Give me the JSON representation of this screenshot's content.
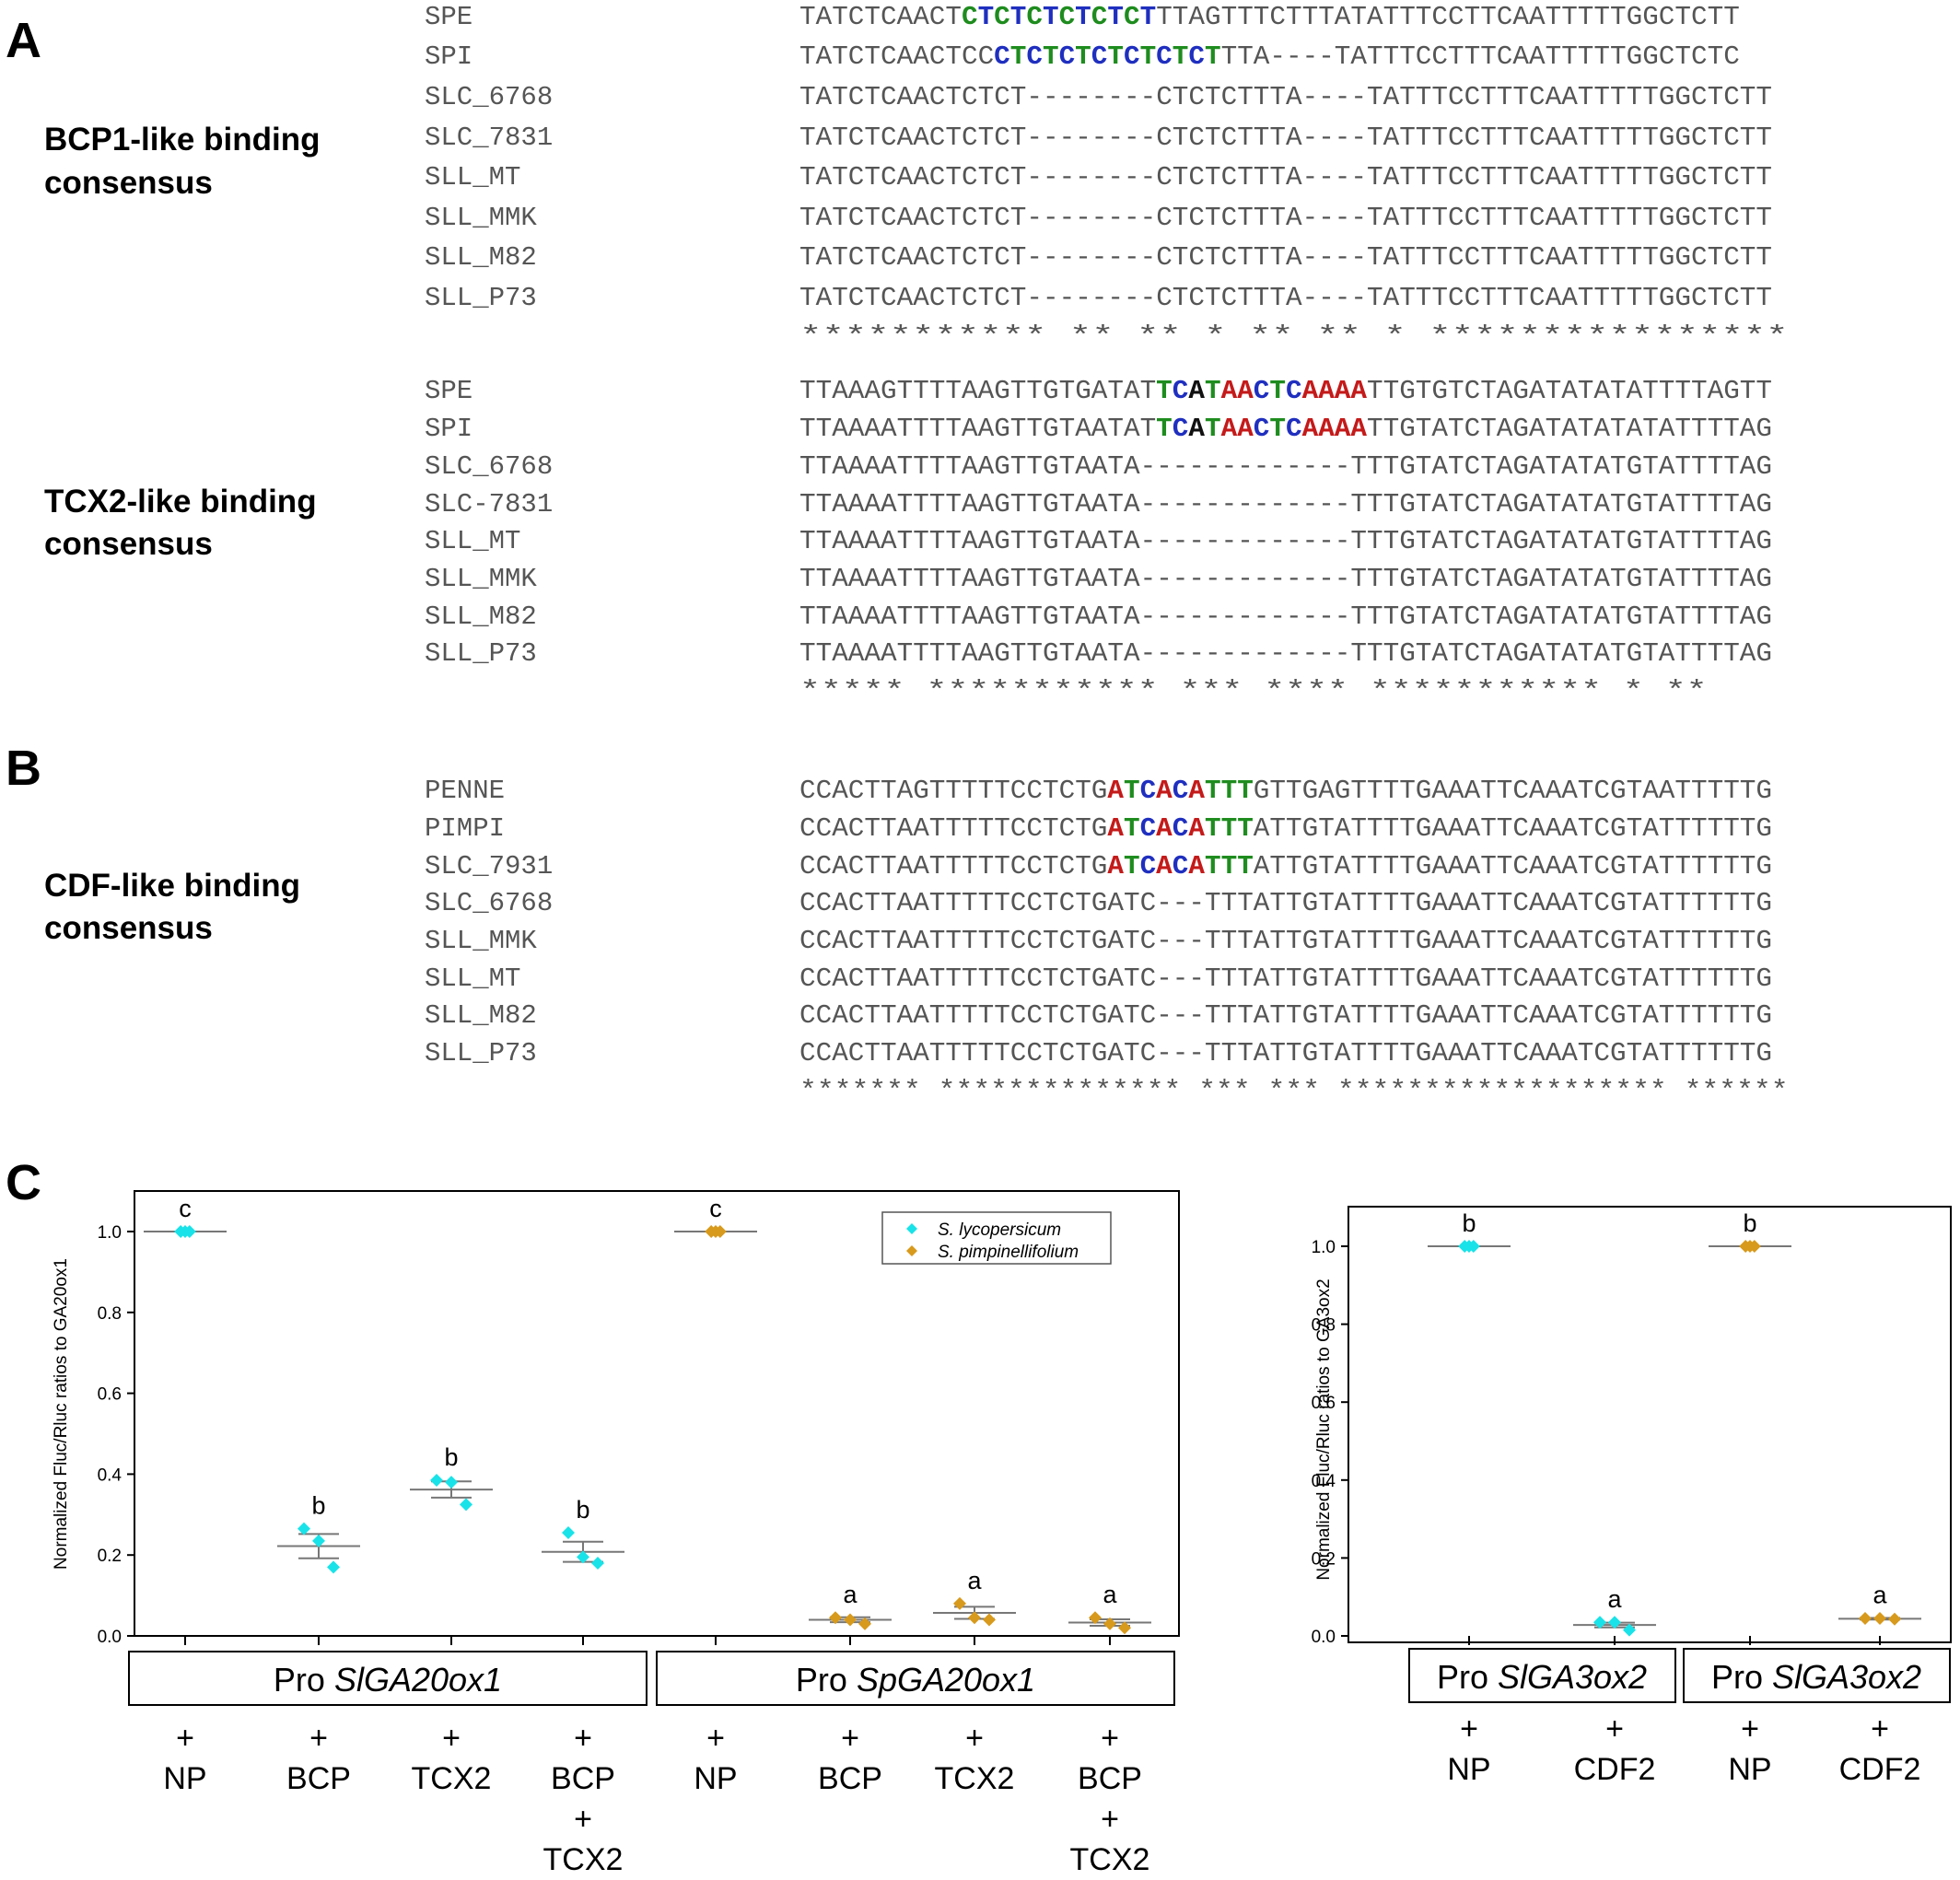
{
  "panel_letters": {
    "a": "A",
    "b": "B",
    "c": "C"
  },
  "panel_a": {
    "block1": {
      "label": [
        "BCP1-like binding",
        "consensus"
      ],
      "rows": [
        {
          "name": "SPE",
          "seq": "TATCTCAACTCTCTCTCTCTCTTTAGTTTCTTTATATTTCCTTCAATTTTTGGCTCTT",
          "hl": [
            [
              10,
              11,
              "g"
            ],
            [
              11,
              12,
              "b"
            ],
            [
              12,
              13,
              "g"
            ],
            [
              13,
              14,
              "b"
            ],
            [
              14,
              15,
              "g"
            ],
            [
              15,
              16,
              "b"
            ],
            [
              16,
              17,
              "g"
            ],
            [
              17,
              18,
              "b"
            ],
            [
              18,
              19,
              "g"
            ],
            [
              19,
              20,
              "b"
            ],
            [
              20,
              21,
              "g"
            ],
            [
              21,
              22,
              "b"
            ]
          ]
        },
        {
          "name": "SPI",
          "seq": "TATCTCAACTCCCTCTCTCTCTCTCTTTA----TATTTCCTTTCAATTTTTGGCTCTC",
          "hl": [
            [
              12,
              13,
              "b"
            ],
            [
              13,
              14,
              "g"
            ],
            [
              14,
              15,
              "b"
            ],
            [
              15,
              16,
              "g"
            ],
            [
              16,
              17,
              "b"
            ],
            [
              17,
              18,
              "g"
            ],
            [
              18,
              19,
              "b"
            ],
            [
              19,
              20,
              "g"
            ],
            [
              20,
              21,
              "b"
            ],
            [
              21,
              22,
              "g"
            ],
            [
              22,
              23,
              "b"
            ],
            [
              23,
              24,
              "g"
            ],
            [
              24,
              25,
              "b"
            ],
            [
              25,
              26,
              "g"
            ]
          ]
        },
        {
          "name": "SLC_6768",
          "seq": "TATCTCAACTCTCT--------CTCTCTTTA----TATTTCCTTTCAATTTTTGGCTCTT",
          "hl": []
        },
        {
          "name": "SLC_7831",
          "seq": "TATCTCAACTCTCT--------CTCTCTTTA----TATTTCCTTTCAATTTTTGGCTCTT",
          "hl": []
        },
        {
          "name": "SLL_MT",
          "seq": "TATCTCAACTCTCT--------CTCTCTTTA----TATTTCCTTTCAATTTTTGGCTCTT",
          "hl": []
        },
        {
          "name": "SLL_MMK",
          "seq": "TATCTCAACTCTCT--------CTCTCTTTA----TATTTCCTTTCAATTTTTGGCTCTT",
          "hl": []
        },
        {
          "name": "SLL_M82",
          "seq": "TATCTCAACTCTCT--------CTCTCTTTA----TATTTCCTTTCAATTTTTGGCTCTT",
          "hl": []
        },
        {
          "name": "SLL_P73",
          "seq": "TATCTCAACTCTCT--------CTCTCTTTA----TATTTCCTTTCAATTTTTGGCTCTT",
          "hl": []
        }
      ],
      "stars": "*********** **        ** *   **         ** * ****************"
    },
    "block2": {
      "label": [
        "TCX2-like binding",
        "consensus"
      ],
      "rows": [
        {
          "name": "SPE",
          "seq": "TTAAAGTTTTAAGTTGTGATATTCATAACTCAAAATTGTGTCTAGATATATATTTTAGTT",
          "hl": [
            [
              22,
              23,
              "g"
            ],
            [
              23,
              24,
              "b"
            ],
            [
              24,
              25,
              "k"
            ],
            [
              25,
              26,
              "g"
            ],
            [
              26,
              28,
              "r"
            ],
            [
              28,
              29,
              "b"
            ],
            [
              29,
              30,
              "g"
            ],
            [
              30,
              31,
              "b"
            ],
            [
              31,
              35,
              "r"
            ]
          ]
        },
        {
          "name": "SPI",
          "seq": "TTAAAATTTTAAGTTGTAATATTCATAACTCAAAATTGTATCTAGATATATATATTTTAG",
          "hl": [
            [
              22,
              23,
              "g"
            ],
            [
              23,
              24,
              "b"
            ],
            [
              24,
              25,
              "k"
            ],
            [
              25,
              26,
              "g"
            ],
            [
              26,
              28,
              "r"
            ],
            [
              28,
              29,
              "b"
            ],
            [
              29,
              30,
              "g"
            ],
            [
              30,
              31,
              "b"
            ],
            [
              31,
              35,
              "r"
            ]
          ]
        },
        {
          "name": "SLC_6768",
          "seq": "TTAAAATTTTAAGTTGTAATA-------------TTTGTATCTAGATATATGTATTTTAG",
          "hl": []
        },
        {
          "name": "SLC-7831",
          "seq": "TTAAAATTTTAAGTTGTAATA-------------TTTGTATCTAGATATATGTATTTTAG",
          "hl": []
        },
        {
          "name": "SLL_MT",
          "seq": "TTAAAATTTTAAGTTGTAATA-------------TTTGTATCTAGATATATGTATTTTAG",
          "hl": []
        },
        {
          "name": "SLL_MMK",
          "seq": "TTAAAATTTTAAGTTGTAATA-------------TTTGTATCTAGATATATGTATTTTAG",
          "hl": []
        },
        {
          "name": "SLL_M82",
          "seq": "TTAAAATTTTAAGTTGTAATA-------------TTTGTATCTAGATATATGTATTTTAG",
          "hl": []
        },
        {
          "name": "SLL_P73",
          "seq": "TTAAAATTTTAAGTTGTAATA-------------TTTGTATCTAGATATATGTATTTTAG",
          "hl": []
        }
      ],
      "stars": "***** *********** ***              **** *********** * **"
    }
  },
  "panel_b": {
    "label": [
      "CDF-like binding",
      "consensus"
    ],
    "rows": [
      {
        "name": "PENNE",
        "seq": "CCACTTAGTTTTTCCTCTGATCACATTTGTTGAGTTTTGAAATTCAAATCGTAATTTTTG",
        "hl": [
          [
            19,
            20,
            "r"
          ],
          [
            20,
            21,
            "g"
          ],
          [
            21,
            22,
            "b"
          ],
          [
            22,
            23,
            "r"
          ],
          [
            23,
            24,
            "b"
          ],
          [
            24,
            25,
            "r"
          ],
          [
            25,
            28,
            "g"
          ]
        ]
      },
      {
        "name": "PIMPI",
        "seq": "CCACTTAATTTTTCCTCTGATCACATTTATTGTATTTTGAAATTCAAATCGTATTTTTTG",
        "hl": [
          [
            19,
            20,
            "r"
          ],
          [
            20,
            21,
            "g"
          ],
          [
            21,
            22,
            "b"
          ],
          [
            22,
            23,
            "r"
          ],
          [
            23,
            24,
            "b"
          ],
          [
            24,
            25,
            "r"
          ],
          [
            25,
            28,
            "g"
          ]
        ]
      },
      {
        "name": "SLC_7931",
        "seq": "CCACTTAATTTTTCCTCTGATCACATTTATTGTATTTTGAAATTCAAATCGTATTTTTTG",
        "hl": [
          [
            19,
            20,
            "r"
          ],
          [
            20,
            21,
            "g"
          ],
          [
            21,
            22,
            "b"
          ],
          [
            22,
            23,
            "r"
          ],
          [
            23,
            24,
            "b"
          ],
          [
            24,
            25,
            "r"
          ],
          [
            25,
            28,
            "g"
          ]
        ]
      },
      {
        "name": "SLC_6768",
        "seq": "CCACTTAATTTTTCCTCTGATC---TTTATTGTATTTTGAAATTCAAATCGTATTTTTTG",
        "hl": []
      },
      {
        "name": "SLL_MMK",
        "seq": "CCACTTAATTTTTCCTCTGATC---TTTATTGTATTTTGAAATTCAAATCGTATTTTTTG",
        "hl": []
      },
      {
        "name": "SLL_MT",
        "seq": "CCACTTAATTTTTCCTCTGATC---TTTATTGTATTTTGAAATTCAAATCGTATTTTTTG",
        "hl": []
      },
      {
        "name": "SLL_M82",
        "seq": "CCACTTAATTTTTCCTCTGATC---TTTATTGTATTTTGAAATTCAAATCGTATTTTTTG",
        "hl": []
      },
      {
        "name": "SLL_P73",
        "seq": "CCACTTAATTTTTCCTCTGATC---TTTATTGTATTTTGAAATTCAAATCGTATTTTTTG",
        "hl": []
      }
    ],
    "stars": "******* **************    *** ***  ******************* ******"
  },
  "colors": {
    "g": "#1e8c1e",
    "b": "#1f2fbf",
    "r": "#c41a1a",
    "k": "#111111",
    "text": "#555555",
    "cyan": "#19e3e8",
    "orange": "#d89a1c"
  },
  "chart_data": [
    {
      "type": "scatter",
      "title": "",
      "ylabel": "Normalized Fluc/Rluc ratios to GA20ox1",
      "ylim": [
        0,
        1.0
      ],
      "yticks": [
        "0.0",
        "0.2",
        "0.4",
        "0.6",
        "0.8",
        "1.0"
      ],
      "legend": {
        "placement": "top-right",
        "entries": [
          {
            "name": "S. lycopersicum",
            "color": "#19e3e8"
          },
          {
            "name": "S. pimpinellifolium",
            "color": "#d89a1c"
          }
        ]
      },
      "groups": [
        {
          "species": "S. lycopersicum",
          "points": [
            1.0,
            1.0,
            1.0
          ],
          "mean": 1.0,
          "err": 0.0,
          "letter": "c"
        },
        {
          "species": "S. lycopersicum",
          "points": [
            0.265,
            0.235,
            0.17
          ],
          "mean": 0.222,
          "err": 0.03,
          "letter": "b"
        },
        {
          "species": "S. lycopersicum",
          "points": [
            0.385,
            0.38,
            0.325
          ],
          "mean": 0.362,
          "err": 0.02,
          "letter": "b"
        },
        {
          "species": "S. lycopersicum",
          "points": [
            0.255,
            0.195,
            0.18
          ],
          "mean": 0.208,
          "err": 0.025,
          "letter": "b"
        },
        {
          "species": "S. pimpinellifolium",
          "points": [
            1.0,
            1.0,
            1.0
          ],
          "mean": 1.0,
          "err": 0.0,
          "letter": "c"
        },
        {
          "species": "S. pimpinellifolium",
          "points": [
            0.045,
            0.04,
            0.03
          ],
          "mean": 0.04,
          "err": 0.006,
          "letter": "a"
        },
        {
          "species": "S. pimpinellifolium",
          "points": [
            0.08,
            0.045,
            0.04
          ],
          "mean": 0.057,
          "err": 0.015,
          "letter": "a"
        },
        {
          "species": "S. pimpinellifolium",
          "points": [
            0.045,
            0.03,
            0.02
          ],
          "mean": 0.033,
          "err": 0.008,
          "letter": "a"
        }
      ],
      "promoters": [
        [
          "Pro ",
          "SlGA20ox1"
        ],
        [
          "Pro ",
          "SpGA20ox1"
        ]
      ],
      "treatments": [
        [
          "+",
          "NP"
        ],
        [
          "+",
          "BCP"
        ],
        [
          "+",
          "TCX2"
        ],
        [
          "+",
          "BCP",
          "+",
          "TCX2"
        ],
        [
          "+",
          "NP"
        ],
        [
          "+",
          "BCP"
        ],
        [
          "+",
          "TCX2"
        ],
        [
          "+",
          "BCP",
          "+",
          "TCX2"
        ]
      ]
    },
    {
      "type": "scatter",
      "title": "",
      "ylabel": "Normalized Fluc/Rluc ratios to GA3ox2",
      "ylim": [
        0,
        1.0
      ],
      "yticks": [
        "0.0",
        "0.2",
        "0.4",
        "0.6",
        "0.8",
        "1.0"
      ],
      "groups": [
        {
          "species": "S. lycopersicum",
          "points": [
            1.0,
            1.0,
            1.0
          ],
          "mean": 1.0,
          "err": 0.0,
          "letter": "b"
        },
        {
          "species": "S. lycopersicum",
          "points": [
            0.035,
            0.035,
            0.015
          ],
          "mean": 0.028,
          "err": 0.006,
          "letter": "a"
        },
        {
          "species": "S. pimpinellifolium",
          "points": [
            1.0,
            1.0,
            1.0
          ],
          "mean": 1.0,
          "err": 0.0,
          "letter": "b"
        },
        {
          "species": "S. pimpinellifolium",
          "points": [
            0.045,
            0.045,
            0.043
          ],
          "mean": 0.044,
          "err": 0.002,
          "letter": "a"
        }
      ],
      "promoters": [
        [
          "Pro ",
          "SlGA3ox2"
        ],
        [
          "Pro ",
          "SlGA3ox2"
        ]
      ],
      "treatments": [
        [
          "+",
          "NP"
        ],
        [
          "+",
          "CDF2"
        ],
        [
          "+",
          "NP"
        ],
        [
          "+",
          "CDF2"
        ]
      ]
    }
  ]
}
